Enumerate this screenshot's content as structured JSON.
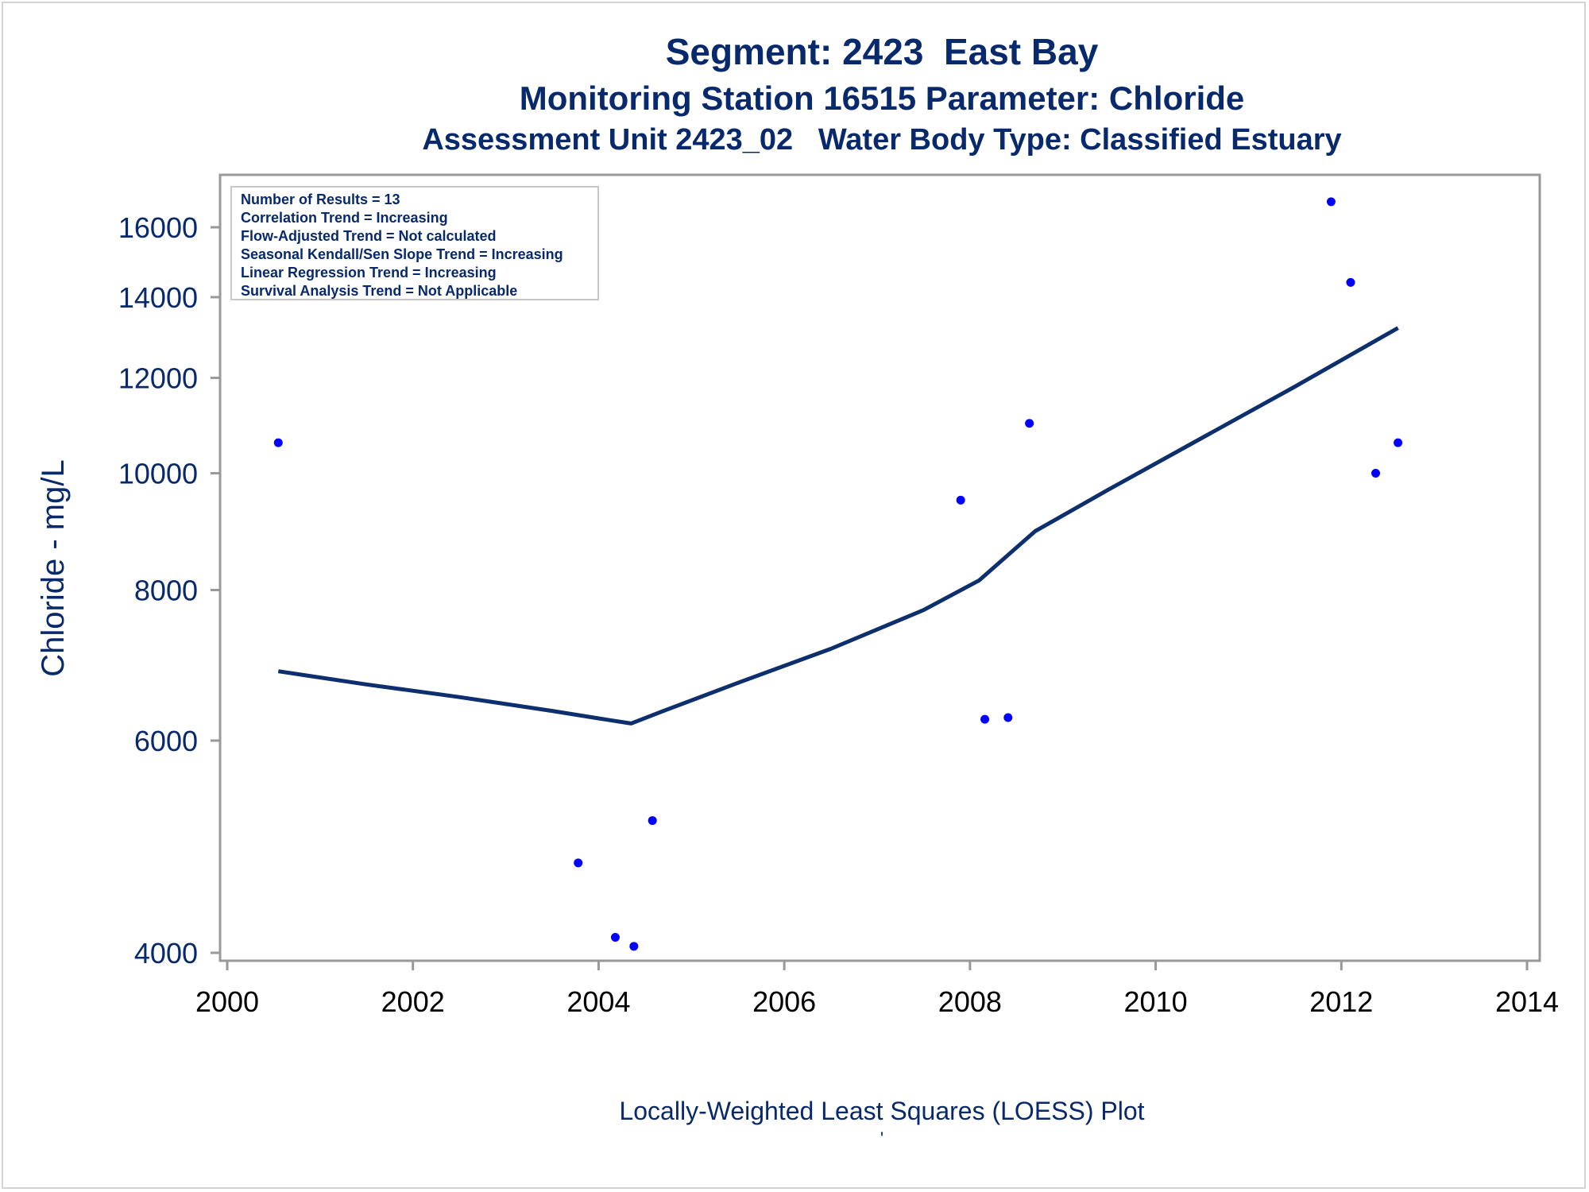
{
  "chart_data": {
    "type": "scatter",
    "title": "Segment: 2423  East Bay",
    "subtitle": "Monitoring Station 16515 Parameter: Chloride",
    "subtitle2": "Assessment Unit 2423_02   Water Body Type: Classified Estuary",
    "xlabel": "Locally-Weighted Least Squares (LOESS) Plot",
    "ylabel": "Chloride - mg/L",
    "xlim": [
      2000,
      2014
    ],
    "ylim": [
      4000,
      17000
    ],
    "y_scale": "log",
    "x_ticks": [
      "2000",
      "2002",
      "2004",
      "2006",
      "2008",
      "2010",
      "2012",
      "2014"
    ],
    "y_ticks": [
      "4000",
      "6000",
      "8000",
      "10000",
      "12000",
      "14000",
      "16000"
    ],
    "legend_lines": [
      "Number of Results = 13",
      "Correlation Trend = Increasing",
      "Flow-Adjusted Trend = Not calculated",
      "Seasonal Kendall/Sen Slope Trend = Increasing",
      "Linear Regression Trend = Increasing",
      "Survival Analysis Trend = Not Applicable"
    ],
    "legend_placement": "top-left",
    "footnote": "'",
    "points": [
      {
        "x": 2000.55,
        "y": 10600
      },
      {
        "x": 2003.78,
        "y": 4750
      },
      {
        "x": 2004.18,
        "y": 4120
      },
      {
        "x": 2004.38,
        "y": 4050
      },
      {
        "x": 2004.58,
        "y": 5150
      },
      {
        "x": 2007.9,
        "y": 9500
      },
      {
        "x": 2008.16,
        "y": 6250
      },
      {
        "x": 2008.41,
        "y": 6270
      },
      {
        "x": 2008.64,
        "y": 11000
      },
      {
        "x": 2011.89,
        "y": 16800
      },
      {
        "x": 2012.1,
        "y": 14400
      },
      {
        "x": 2012.37,
        "y": 10000
      },
      {
        "x": 2012.61,
        "y": 10600
      }
    ],
    "loess": [
      {
        "x": 2000.55,
        "y": 6850
      },
      {
        "x": 2001.5,
        "y": 6680
      },
      {
        "x": 2002.5,
        "y": 6520
      },
      {
        "x": 2003.5,
        "y": 6350
      },
      {
        "x": 2004.0,
        "y": 6260
      },
      {
        "x": 2004.35,
        "y": 6200
      },
      {
        "x": 2004.7,
        "y": 6350
      },
      {
        "x": 2005.5,
        "y": 6700
      },
      {
        "x": 2006.5,
        "y": 7150
      },
      {
        "x": 2007.5,
        "y": 7700
      },
      {
        "x": 2008.1,
        "y": 8150
      },
      {
        "x": 2008.7,
        "y": 8950
      },
      {
        "x": 2009.5,
        "y": 9700
      },
      {
        "x": 2010.5,
        "y": 10700
      },
      {
        "x": 2011.5,
        "y": 11800
      },
      {
        "x": 2012.61,
        "y": 13200
      }
    ],
    "colors": {
      "text": "#08296b",
      "line": "#0d2f6e",
      "points": "#0000ff",
      "axis": "#999999"
    }
  }
}
